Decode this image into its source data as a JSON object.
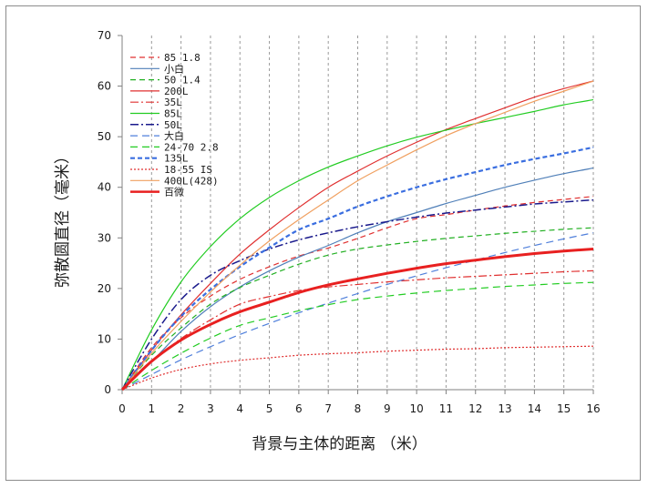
{
  "chart_data": {
    "type": "line",
    "xlabel": "背景与主体的距离 （米）",
    "ylabel": "弥散圆直径（毫米）",
    "xlim": [
      0,
      16
    ],
    "ylim": [
      0,
      70
    ],
    "x_ticks": [
      "0",
      "1",
      "2",
      "3",
      "4",
      "5",
      "6",
      "7",
      "8",
      "9",
      "10",
      "11",
      "12",
      "13",
      "14",
      "15",
      "16"
    ],
    "y_ticks": [
      "0",
      "10",
      "20",
      "30",
      "40",
      "50",
      "60",
      "70"
    ],
    "grid": "vertical dashed",
    "legend_position": "top-left",
    "x": [
      0,
      1,
      2,
      3,
      4,
      5,
      6,
      7,
      8,
      9,
      10,
      11,
      12,
      13,
      14,
      15,
      16
    ],
    "series": [
      {
        "name": "85 1.8",
        "color": "#e03030",
        "dash": "6,4",
        "width": 1.2,
        "values": [
          0,
          8.3,
          14.2,
          18.5,
          21.8,
          24.3,
          26.4,
          28.0,
          29.9,
          32.0,
          33.8,
          34.6,
          35.5,
          36.3,
          37.0,
          37.6,
          38.2
        ]
      },
      {
        "name": "小白",
        "color": "#4f7fb8",
        "dash": "",
        "width": 1.2,
        "values": [
          0,
          5.5,
          11.5,
          16.4,
          20.3,
          23.5,
          26.2,
          28.5,
          31.0,
          33.2,
          35.0,
          36.8,
          38.4,
          40.0,
          41.4,
          42.7,
          43.8
        ]
      },
      {
        "name": "50 1.4",
        "color": "#22b022",
        "dash": "6,4",
        "width": 1.2,
        "values": [
          0,
          6.8,
          12.2,
          16.9,
          20.2,
          22.6,
          24.8,
          26.6,
          27.8,
          28.6,
          29.3,
          29.9,
          30.4,
          30.9,
          31.3,
          31.7,
          32.0
        ]
      },
      {
        "name": "200L",
        "color": "#e03030",
        "dash": "",
        "width": 1.2,
        "values": [
          0,
          7.8,
          14.8,
          21.0,
          26.8,
          31.6,
          36.0,
          40.0,
          43.2,
          46.2,
          48.9,
          51.4,
          53.6,
          55.7,
          57.8,
          59.5,
          61.0
        ]
      },
      {
        "name": "35L",
        "color": "#e03030",
        "dash": "9,3,2,3",
        "width": 1.2,
        "values": [
          0,
          5.5,
          10.1,
          13.8,
          16.9,
          18.4,
          19.6,
          20.3,
          20.8,
          21.3,
          21.7,
          22.1,
          22.4,
          22.7,
          23.0,
          23.3,
          23.5
        ]
      },
      {
        "name": "85L",
        "color": "#22cc22",
        "dash": "",
        "width": 1.2,
        "values": [
          0,
          11.8,
          21.3,
          28.3,
          33.8,
          38.0,
          41.3,
          44.0,
          46.2,
          48.2,
          49.9,
          51.3,
          52.6,
          53.8,
          55.0,
          56.3,
          57.3
        ]
      },
      {
        "name": "50L",
        "color": "#1a1a8c",
        "dash": "9,3,2,3",
        "width": 1.5,
        "values": [
          0,
          10.0,
          17.8,
          22.6,
          25.5,
          27.8,
          29.6,
          31.0,
          32.2,
          33.2,
          34.1,
          34.9,
          35.5,
          36.1,
          36.7,
          37.1,
          37.5
        ]
      },
      {
        "name": "大白",
        "color": "#4f7fdb",
        "dash": "8,5",
        "width": 1.2,
        "values": [
          0,
          3.0,
          5.9,
          8.5,
          10.9,
          13.1,
          15.2,
          17.1,
          19.0,
          20.8,
          22.5,
          24.1,
          25.6,
          27.1,
          28.5,
          29.8,
          31.0
        ]
      },
      {
        "name": "24-70 2.8",
        "color": "#22cc22",
        "dash": "8,5",
        "width": 1.2,
        "values": [
          0,
          3.8,
          7.2,
          10.2,
          12.7,
          14.2,
          15.6,
          16.8,
          17.8,
          18.5,
          19.1,
          19.6,
          20.0,
          20.4,
          20.7,
          21.0,
          21.2
        ]
      },
      {
        "name": "135L",
        "color": "#3a6ee0",
        "dash": "5,3",
        "width": 2.2,
        "values": [
          0,
          7.8,
          14.5,
          19.8,
          24.3,
          28.1,
          31.6,
          33.8,
          36.2,
          38.2,
          40.0,
          41.6,
          43.0,
          44.4,
          45.6,
          46.7,
          47.9
        ]
      },
      {
        "name": "18-55 IS",
        "color": "#e03030",
        "dash": "2,2",
        "width": 1.2,
        "values": [
          0,
          2.3,
          4.0,
          5.1,
          5.8,
          6.3,
          6.8,
          7.1,
          7.3,
          7.6,
          7.8,
          8.0,
          8.1,
          8.3,
          8.4,
          8.5,
          8.6
        ]
      },
      {
        "name": "400L(428)",
        "color": "#f0a060",
        "dash": "",
        "width": 1.2,
        "values": [
          0,
          7.2,
          13.5,
          19.3,
          24.6,
          29.4,
          33.6,
          37.5,
          41.3,
          44.4,
          47.4,
          50.2,
          52.6,
          54.8,
          57.0,
          59.0,
          61.0
        ]
      },
      {
        "name": "百微",
        "color": "#e82020",
        "dash": "",
        "width": 3,
        "values": [
          0,
          5.6,
          9.8,
          12.9,
          15.4,
          17.3,
          19.2,
          20.7,
          21.9,
          23.0,
          24.0,
          24.9,
          25.6,
          26.3,
          26.9,
          27.4,
          27.8
        ]
      }
    ]
  }
}
